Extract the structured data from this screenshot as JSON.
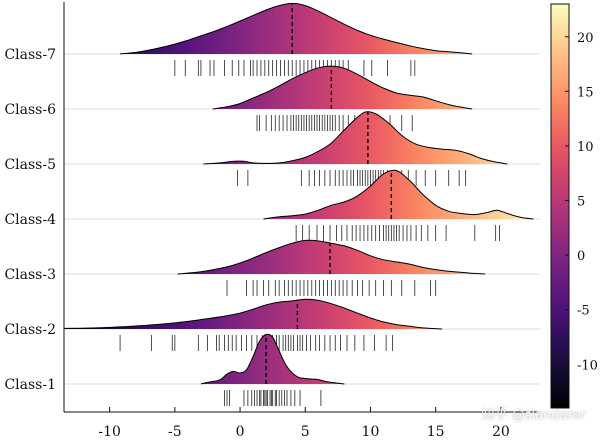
{
  "chart_data": {
    "type": "ridgeline",
    "xlabel": "",
    "ylabel": "",
    "xlim": [
      -13.5,
      23
    ],
    "xticks": [
      -10,
      -5,
      0,
      5,
      10,
      15,
      20
    ],
    "grid": "horizontal baselines",
    "colormap": "magma",
    "colorbar": {
      "min": -14,
      "max": 23,
      "ticks": [
        20,
        15,
        10,
        5,
        0,
        -5,
        -10
      ]
    },
    "series": [
      {
        "name": "Class-1",
        "median": 2.0,
        "density": [
          [
            -3.0,
            0.0
          ],
          [
            -2.5,
            0.03
          ],
          [
            -2.0,
            0.05
          ],
          [
            -1.5,
            0.08
          ],
          [
            -1.0,
            0.18
          ],
          [
            -0.5,
            0.23
          ],
          [
            0.0,
            0.2
          ],
          [
            0.5,
            0.26
          ],
          [
            1.0,
            0.5
          ],
          [
            1.5,
            0.78
          ],
          [
            2.0,
            0.9
          ],
          [
            2.5,
            0.85
          ],
          [
            3.0,
            0.6
          ],
          [
            3.5,
            0.35
          ],
          [
            4.0,
            0.2
          ],
          [
            4.5,
            0.12
          ],
          [
            5.0,
            0.1
          ],
          [
            5.5,
            0.09
          ],
          [
            6.0,
            0.08
          ],
          [
            6.5,
            0.05
          ],
          [
            7.0,
            0.03
          ],
          [
            8.0,
            0.0
          ]
        ],
        "ticks": [
          -1.2,
          -1.0,
          -0.8,
          0.3,
          0.6,
          0.9,
          1.1,
          1.3,
          1.5,
          1.6,
          1.8,
          1.9,
          2.0,
          2.1,
          2.3,
          2.4,
          2.5,
          2.7,
          2.8,
          3.0,
          3.2,
          3.4,
          3.6,
          3.9,
          4.2,
          4.6,
          6.2
        ]
      },
      {
        "name": "Class-2",
        "median": 4.4,
        "density": [
          [
            -13.5,
            0.01
          ],
          [
            -11,
            0.02
          ],
          [
            -9,
            0.04
          ],
          [
            -7,
            0.07
          ],
          [
            -5,
            0.11
          ],
          [
            -3,
            0.17
          ],
          [
            -1,
            0.24
          ],
          [
            0,
            0.29
          ],
          [
            1,
            0.36
          ],
          [
            2,
            0.44
          ],
          [
            3,
            0.49
          ],
          [
            4,
            0.51
          ],
          [
            5,
            0.54
          ],
          [
            6,
            0.52
          ],
          [
            7,
            0.46
          ],
          [
            8,
            0.38
          ],
          [
            9,
            0.29
          ],
          [
            10,
            0.2
          ],
          [
            11,
            0.13
          ],
          [
            12,
            0.08
          ],
          [
            13,
            0.05
          ],
          [
            14,
            0.02
          ],
          [
            15.5,
            0.0
          ]
        ],
        "ticks": [
          -9.2,
          -6.8,
          -5.2,
          -5.0,
          -3.2,
          -2.5,
          -1.8,
          -1.6,
          -1.2,
          -0.9,
          -0.6,
          -0.3,
          0.1,
          0.5,
          0.9,
          1.3,
          1.7,
          2.0,
          2.2,
          2.5,
          2.8,
          3.0,
          3.3,
          3.5,
          3.7,
          3.9,
          4.1,
          4.4,
          4.6,
          4.8,
          5.1,
          5.4,
          5.8,
          6.1,
          6.5,
          6.9,
          7.3,
          7.7,
          8.2,
          8.8,
          9.5,
          10.3,
          11.2,
          11.7
        ]
      },
      {
        "name": "Class-3",
        "median": 6.9,
        "density": [
          [
            -4.8,
            0.0
          ],
          [
            -3,
            0.04
          ],
          [
            -1,
            0.13
          ],
          [
            0,
            0.2
          ],
          [
            1,
            0.29
          ],
          [
            2,
            0.39
          ],
          [
            3,
            0.48
          ],
          [
            4,
            0.56
          ],
          [
            5,
            0.61
          ],
          [
            6,
            0.6
          ],
          [
            7,
            0.56
          ],
          [
            8,
            0.51
          ],
          [
            9,
            0.43
          ],
          [
            10,
            0.33
          ],
          [
            11,
            0.26
          ],
          [
            12,
            0.22
          ],
          [
            13,
            0.18
          ],
          [
            14,
            0.12
          ],
          [
            15,
            0.08
          ],
          [
            16,
            0.05
          ],
          [
            17,
            0.03
          ],
          [
            18,
            0.01
          ],
          [
            18.8,
            0.0
          ]
        ],
        "ticks": [
          -1.0,
          0.5,
          1.0,
          1.3,
          1.8,
          2.2,
          2.7,
          3.0,
          3.4,
          3.7,
          4.0,
          4.3,
          4.6,
          4.9,
          5.2,
          5.5,
          5.8,
          6.1,
          6.4,
          6.7,
          7.0,
          7.3,
          7.6,
          7.9,
          8.2,
          8.6,
          9.0,
          9.4,
          9.9,
          10.4,
          11.0,
          11.6,
          12.4,
          13.4,
          14.6,
          15.0
        ]
      },
      {
        "name": "Class-4",
        "median": 11.6,
        "density": [
          [
            1.8,
            0.0
          ],
          [
            3,
            0.04
          ],
          [
            4,
            0.06
          ],
          [
            5,
            0.09
          ],
          [
            6,
            0.16
          ],
          [
            7,
            0.25
          ],
          [
            8,
            0.31
          ],
          [
            9,
            0.42
          ],
          [
            10,
            0.6
          ],
          [
            11,
            0.82
          ],
          [
            12,
            0.88
          ],
          [
            13,
            0.7
          ],
          [
            14,
            0.45
          ],
          [
            15,
            0.25
          ],
          [
            16,
            0.14
          ],
          [
            17,
            0.1
          ],
          [
            18,
            0.08
          ],
          [
            19,
            0.12
          ],
          [
            19.7,
            0.16
          ],
          [
            20.5,
            0.1
          ],
          [
            21.5,
            0.03
          ],
          [
            22.5,
            0.0
          ]
        ],
        "ticks": [
          4.3,
          4.8,
          5.3,
          5.9,
          6.4,
          6.9,
          7.4,
          7.8,
          8.2,
          8.6,
          8.9,
          9.2,
          9.5,
          9.8,
          10.1,
          10.4,
          10.7,
          11.0,
          11.2,
          11.4,
          11.6,
          11.8,
          12.0,
          12.2,
          12.5,
          12.8,
          13.1,
          13.5,
          13.9,
          14.4,
          15.0,
          15.8,
          18.0,
          19.6,
          19.9
        ]
      },
      {
        "name": "Class-5",
        "median": 9.8,
        "density": [
          [
            -2.8,
            0.0
          ],
          [
            -1.5,
            0.02
          ],
          [
            -0.5,
            0.05
          ],
          [
            0.3,
            0.05
          ],
          [
            1,
            0.02
          ],
          [
            2,
            0.01
          ],
          [
            3,
            0.02
          ],
          [
            4,
            0.06
          ],
          [
            5,
            0.12
          ],
          [
            6,
            0.23
          ],
          [
            7,
            0.38
          ],
          [
            8,
            0.62
          ],
          [
            9,
            0.85
          ],
          [
            9.7,
            0.95
          ],
          [
            10.5,
            0.9
          ],
          [
            11.5,
            0.72
          ],
          [
            12.5,
            0.5
          ],
          [
            13.5,
            0.36
          ],
          [
            14.5,
            0.3
          ],
          [
            15.5,
            0.27
          ],
          [
            16.5,
            0.25
          ],
          [
            17.5,
            0.19
          ],
          [
            18.5,
            0.1
          ],
          [
            19.5,
            0.04
          ],
          [
            20.5,
            0.0
          ]
        ],
        "ticks": [
          -0.2,
          0.6,
          4.7,
          5.3,
          5.7,
          6.1,
          6.5,
          6.9,
          7.3,
          7.6,
          7.9,
          8.2,
          8.5,
          8.7,
          9.0,
          9.2,
          9.4,
          9.6,
          9.8,
          10.0,
          10.2,
          10.4,
          10.6,
          10.8,
          11.0,
          11.3,
          11.6,
          12.0,
          12.4,
          12.9,
          13.5,
          14.2,
          15.0,
          16.0,
          16.8,
          17.3
        ]
      },
      {
        "name": "Class-6",
        "median": 7.0,
        "density": [
          [
            -2.1,
            0.0
          ],
          [
            -1,
            0.04
          ],
          [
            0,
            0.1
          ],
          [
            1,
            0.2
          ],
          [
            2,
            0.3
          ],
          [
            3,
            0.42
          ],
          [
            4,
            0.55
          ],
          [
            5,
            0.66
          ],
          [
            6,
            0.75
          ],
          [
            7,
            0.78
          ],
          [
            8,
            0.74
          ],
          [
            9,
            0.63
          ],
          [
            10,
            0.5
          ],
          [
            11,
            0.38
          ],
          [
            12,
            0.29
          ],
          [
            13,
            0.25
          ],
          [
            14,
            0.22
          ],
          [
            15,
            0.15
          ],
          [
            16,
            0.08
          ],
          [
            17,
            0.03
          ],
          [
            17.8,
            0.0
          ]
        ],
        "ticks": [
          1.3,
          1.5,
          2.0,
          2.4,
          2.7,
          3.0,
          3.3,
          3.6,
          3.9,
          4.1,
          4.3,
          4.5,
          4.7,
          4.9,
          5.1,
          5.3,
          5.5,
          5.7,
          5.9,
          6.1,
          6.3,
          6.5,
          6.7,
          6.9,
          7.1,
          7.3,
          7.6,
          7.9,
          8.3,
          8.8,
          9.3,
          9.9,
          10.5,
          11.5,
          12.4,
          13.2
        ]
      },
      {
        "name": "Class-7",
        "median": 4.0,
        "density": [
          [
            -9.2,
            0.0
          ],
          [
            -8,
            0.03
          ],
          [
            -7,
            0.07
          ],
          [
            -6,
            0.12
          ],
          [
            -5,
            0.18
          ],
          [
            -4,
            0.25
          ],
          [
            -3,
            0.33
          ],
          [
            -2,
            0.41
          ],
          [
            -1,
            0.5
          ],
          [
            0,
            0.6
          ],
          [
            1,
            0.7
          ],
          [
            2,
            0.8
          ],
          [
            3,
            0.88
          ],
          [
            4,
            0.92
          ],
          [
            5,
            0.88
          ],
          [
            6,
            0.78
          ],
          [
            7,
            0.66
          ],
          [
            8,
            0.54
          ],
          [
            9,
            0.43
          ],
          [
            10,
            0.34
          ],
          [
            11,
            0.27
          ],
          [
            12,
            0.21
          ],
          [
            13,
            0.15
          ],
          [
            14,
            0.1
          ],
          [
            15,
            0.06
          ],
          [
            16,
            0.04
          ],
          [
            17,
            0.02
          ],
          [
            17.8,
            0.0
          ]
        ],
        "ticks": [
          -5.0,
          -4.2,
          -3.2,
          -3.0,
          -2.3,
          -2.0,
          -1.2,
          -0.6,
          -0.1,
          0.3,
          0.8,
          1.0,
          1.3,
          1.6,
          1.9,
          2.2,
          2.5,
          2.8,
          3.1,
          3.4,
          3.7,
          4.0,
          4.3,
          4.6,
          4.9,
          5.2,
          5.5,
          5.8,
          6.1,
          6.4,
          6.7,
          7.0,
          7.3,
          7.6,
          7.9,
          8.3,
          9.5,
          10.1,
          11.3,
          13.1,
          13.4
        ]
      }
    ]
  },
  "watermark": "知乎 @slandarer"
}
